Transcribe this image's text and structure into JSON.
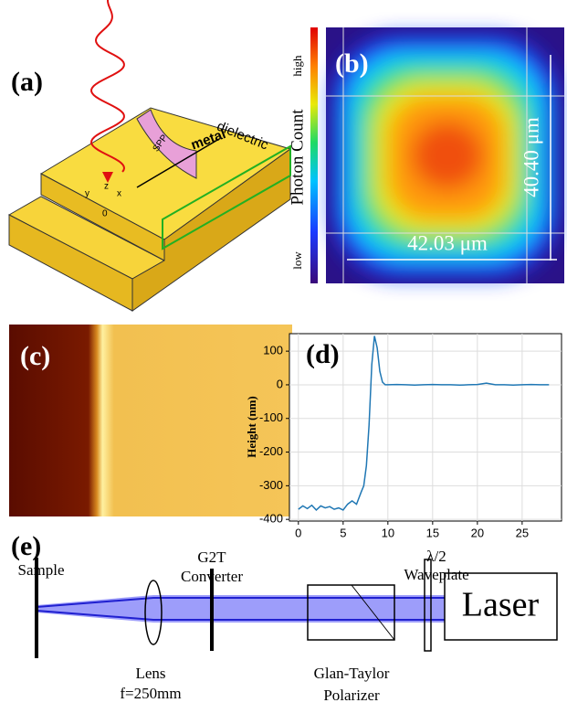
{
  "panel_a": {
    "label": "(a)",
    "dielectric": "dielectric",
    "spp": "SPP",
    "metal": "metal",
    "axis_y": "y",
    "axis_z": "z",
    "axis_x": "x",
    "origin": "0"
  },
  "panel_b": {
    "label": "(b)",
    "colorbar_high": "high",
    "colorbar_label": "Photon Count",
    "colorbar_low": "low",
    "height": "40.40 μm",
    "width": "42.03 μm"
  },
  "panel_c": {
    "label": "(c)"
  },
  "chart_data": {
    "type": "line",
    "label": "(d)",
    "y_label": "Height (nm)",
    "x": [
      0,
      0.5,
      1,
      1.5,
      2,
      2.5,
      3,
      3.5,
      4,
      4.5,
      5,
      5.5,
      6,
      6.5,
      7,
      7.3,
      7.6,
      7.9,
      8.2,
      8.5,
      8.8,
      9.1,
      9.4,
      9.7,
      10,
      11,
      12,
      13,
      14,
      15,
      16,
      17,
      18,
      19,
      20,
      21,
      22,
      23,
      24,
      25,
      26,
      27,
      28
    ],
    "series": [
      {
        "color": "#1f77b4",
        "values": [
          -370,
          -360,
          -368,
          -358,
          -372,
          -360,
          -366,
          -362,
          -370,
          -366,
          -372,
          -355,
          -345,
          -355,
          -320,
          -300,
          -240,
          -120,
          60,
          145,
          110,
          40,
          8,
          0,
          0,
          1,
          0,
          -1,
          0,
          1,
          0,
          0,
          -1,
          0,
          1,
          5,
          0,
          0,
          -1,
          0,
          1,
          0,
          0
        ]
      }
    ],
    "xlim": [
      -1,
      29.4
    ],
    "ylim": [
      -405,
      152
    ],
    "xticks": [
      0,
      5,
      10,
      15,
      20,
      25
    ],
    "yticks": [
      100,
      0,
      -100,
      -200,
      -300,
      -400
    ],
    "grid": true
  },
  "panel_e": {
    "label": "(e)",
    "sample": "Sample",
    "g2t_1": "G2T",
    "g2t_2": "Converter",
    "waveplate_1": "λ/2",
    "waveplate_2": "Waveplate",
    "lens_1": "Lens",
    "lens_2": "f=250mm",
    "polarizer_1": "Glan-Taylor",
    "polarizer_2": "Polarizer",
    "laser": "Laser"
  }
}
